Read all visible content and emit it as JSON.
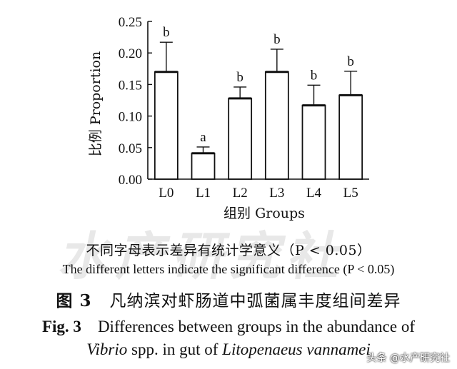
{
  "chart_data": {
    "type": "bar",
    "categories": [
      "L0",
      "L1",
      "L2",
      "L3",
      "L4",
      "L5"
    ],
    "values": [
      0.17,
      0.041,
      0.128,
      0.17,
      0.117,
      0.133
    ],
    "errors": [
      0.047,
      0.01,
      0.018,
      0.036,
      0.032,
      0.038
    ],
    "significance_letters": [
      "b",
      "a",
      "b",
      "b",
      "b",
      "b"
    ],
    "ylabel": "比例 Proportion",
    "xlabel": "组别 Groups",
    "ylim": [
      0,
      0.25
    ],
    "yticks": [
      "0.00",
      "0.05",
      "0.10",
      "0.15",
      "0.20",
      "0.25"
    ],
    "grid": false
  },
  "notes": {
    "cn_note": "不同字母表示差异有统计学意义（P < 0.05）",
    "en_note": "The different letters indicate the significant difference (P < 0.05)"
  },
  "caption": {
    "cn_label": "图 3",
    "cn_text": "凡纳滨对虾肠道中弧菌属丰度组间差异",
    "en_label": "Fig. 3",
    "en_line1": "Differences between groups in the abundance of",
    "en_line2_italic1": "Vibrio",
    "en_line2_text": " spp. in gut of ",
    "en_line2_italic2": "Litopenaeus vannamei"
  },
  "watermark": "水产研究社",
  "source_tag": "头条 @水产研究社"
}
